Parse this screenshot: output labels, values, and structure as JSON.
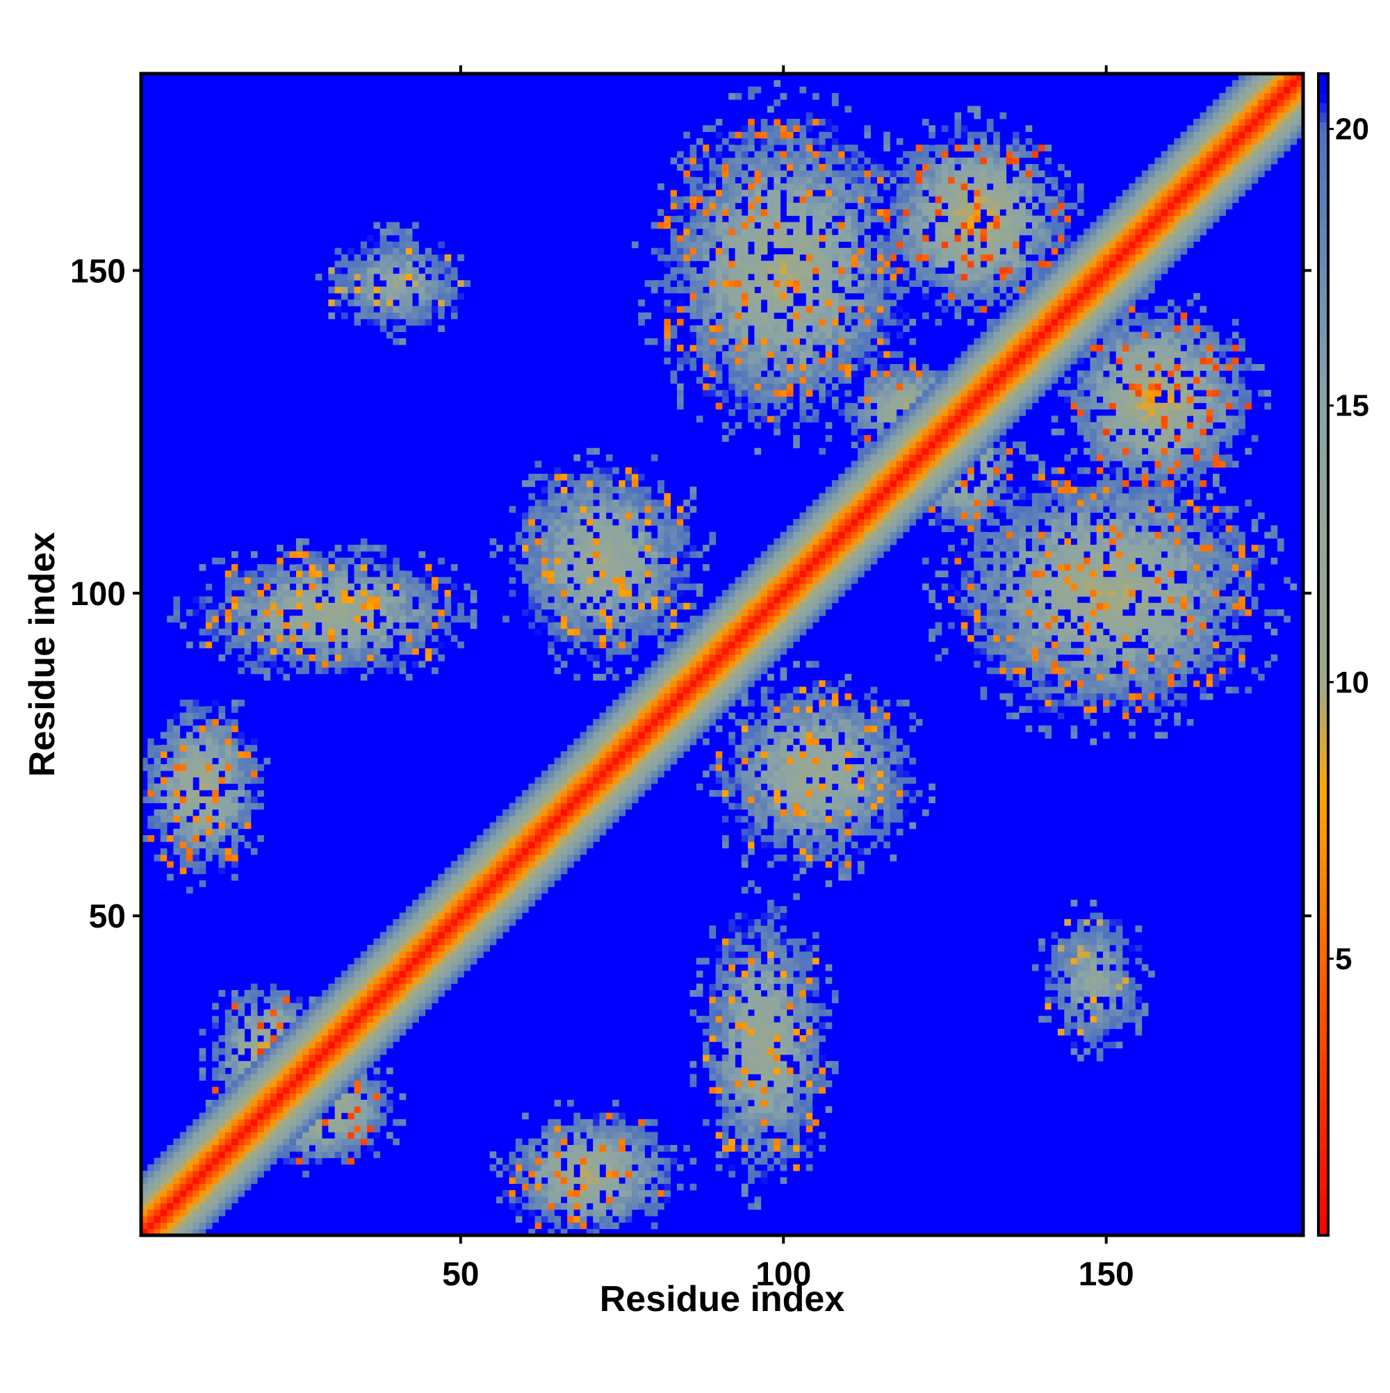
{
  "chart_data": {
    "type": "heatmap",
    "title": "",
    "xlabel": "Residue index",
    "ylabel": "Residue index",
    "n_residues": 180,
    "xlim": [
      1,
      180
    ],
    "ylim": [
      1,
      180
    ],
    "xticks": [
      50,
      100,
      150
    ],
    "yticks": [
      50,
      100,
      150
    ],
    "colorbar": {
      "range": [
        0,
        21
      ],
      "ticks": [
        5,
        10,
        15,
        20
      ],
      "stops": [
        {
          "value": 0,
          "color": "#ff0000"
        },
        {
          "value": 5,
          "color": "#ff6600"
        },
        {
          "value": 8,
          "color": "#ffa500"
        },
        {
          "value": 10,
          "color": "#9ea98a"
        },
        {
          "value": 15,
          "color": "#8aa4a6"
        },
        {
          "value": 20,
          "color": "#4d72c0"
        },
        {
          "value": 20.6,
          "color": "#0000ff"
        },
        {
          "value": 21,
          "color": "#0000ff"
        }
      ]
    },
    "background_value": 21,
    "diagonal_band": {
      "peak_value": 0.5,
      "half_width_residues": 9
    },
    "contact_clusters": [
      {
        "x": 10,
        "y": 70,
        "rx": 10,
        "ry": 14,
        "min": 8
      },
      {
        "x": 70,
        "y": 10,
        "rx": 14,
        "ry": 10,
        "min": 8
      },
      {
        "x": 20,
        "y": 28,
        "rx": 9,
        "ry": 12,
        "min": 6
      },
      {
        "x": 28,
        "y": 20,
        "rx": 12,
        "ry": 9,
        "min": 6
      },
      {
        "x": 30,
        "y": 97,
        "rx": 22,
        "ry": 10,
        "min": 9
      },
      {
        "x": 97,
        "y": 30,
        "rx": 10,
        "ry": 22,
        "min": 9
      },
      {
        "x": 40,
        "y": 148,
        "rx": 11,
        "ry": 8,
        "min": 11
      },
      {
        "x": 148,
        "y": 40,
        "rx": 8,
        "ry": 11,
        "min": 11
      },
      {
        "x": 72,
        "y": 105,
        "rx": 15,
        "ry": 16,
        "min": 9
      },
      {
        "x": 105,
        "y": 72,
        "rx": 16,
        "ry": 15,
        "min": 9
      },
      {
        "x": 100,
        "y": 150,
        "rx": 20,
        "ry": 25,
        "min": 8
      },
      {
        "x": 150,
        "y": 100,
        "rx": 25,
        "ry": 20,
        "min": 8
      },
      {
        "x": 130,
        "y": 158,
        "rx": 15,
        "ry": 15,
        "min": 6
      },
      {
        "x": 158,
        "y": 130,
        "rx": 15,
        "ry": 15,
        "min": 6
      },
      {
        "x": 120,
        "y": 128,
        "rx": 11,
        "ry": 8,
        "min": 7
      },
      {
        "x": 128,
        "y": 120,
        "rx": 8,
        "ry": 11,
        "min": 7
      }
    ]
  }
}
